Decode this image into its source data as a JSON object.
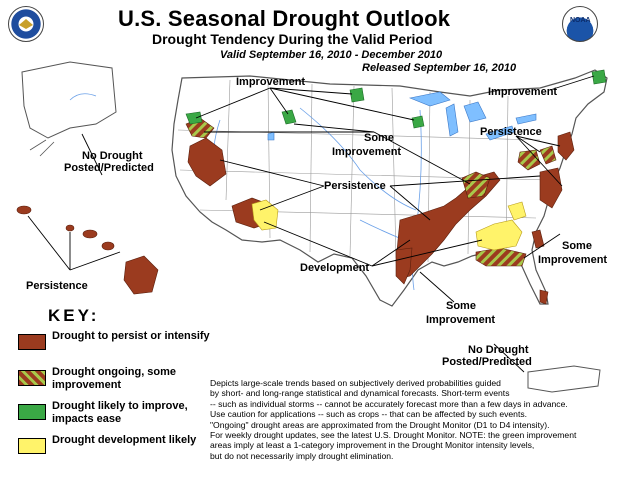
{
  "header": {
    "title": "U.S. Seasonal Drought Outlook",
    "subtitle": "Drought Tendency During the Valid Period",
    "valid": "Valid September 16, 2010 - December 2010",
    "released": "Released September 16, 2010"
  },
  "logos": {
    "left": "doc-seal-icon",
    "right": "noaa-logo-icon",
    "noaa_text": "NOAA"
  },
  "map_labels": {
    "improvement_west": "Improvement",
    "improvement_ne": "Improvement",
    "no_drought_ak_line1": "No Drought",
    "no_drought_ak_line2": "Posted/Predicted",
    "some_improvement_north_line1": "Some",
    "some_improvement_north_line2": "Improvement",
    "persistence_ne": "Persistence",
    "persistence_central": "Persistence",
    "persistence_hi": "Persistence",
    "development": "Development",
    "some_improvement_se_line1": "Some",
    "some_improvement_se_line2": "Improvement",
    "some_improvement_gulf_line1": "Some",
    "some_improvement_gulf_line2": "Improvement",
    "no_drought_pr_line1": "No Drought",
    "no_drought_pr_line2": "Posted/Predicted"
  },
  "key": {
    "title": "KEY:",
    "items": [
      {
        "label": "Drought to persist or intensify",
        "color": "#9b3b1f",
        "pattern": "solid"
      },
      {
        "label": "Drought ongoing, some improvement",
        "color": "#9b3b1f",
        "stripe": "#a8c84a",
        "pattern": "hatch"
      },
      {
        "label": "Drought likely to improve, impacts ease",
        "color": "#3aa845",
        "pattern": "solid"
      },
      {
        "label": "Drought development likely",
        "color": "#fff36a",
        "pattern": "solid"
      }
    ]
  },
  "disclaimer": {
    "lines": [
      "Depicts large-scale trends based on subjectively derived probabilities guided",
      "by short- and long-range statistical and dynamical forecasts. Short-term events",
      "-- such as individual storms -- cannot be accurately forecast more than a few days in advance.",
      "Use caution for applications -- such as crops -- that can be affected by such events.",
      "\"Ongoing\" drought areas are approximated from the Drought Monitor (D1 to D4 intensity).",
      "For weekly drought updates, see the latest U.S. Drought Monitor. NOTE: the green improvement",
      "areas imply at least a 1-category improvement in the Drought Monitor intensity levels,",
      "but do not necessarily imply drought elimination."
    ]
  },
  "colors": {
    "persist": "#9b3b1f",
    "improve": "#3aa845",
    "develop": "#fff36a",
    "hatch": "#a8c84a",
    "lakes": "#7fbfff",
    "rivers": "#6aa0e8",
    "land": "#ffffff",
    "borders": "#777777"
  }
}
